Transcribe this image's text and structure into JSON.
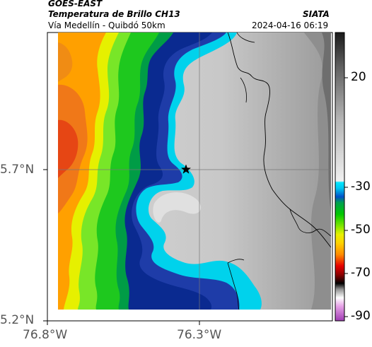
{
  "header": {
    "satellite": "GOES-EAST",
    "product": "Temperatura de Brillo CH13",
    "region": "Vía Medellín - Quibdó 50km",
    "org": "SIATA",
    "timestamp": "2024-04-16 06:19"
  },
  "axes": {
    "lat_labels": [
      "5.7°N",
      "5.2°N"
    ],
    "lon_labels": [
      "76.8°W",
      "76.3°W"
    ]
  },
  "colorbar": {
    "labels": [
      "20",
      "-30",
      "-50",
      "-70",
      "-90"
    ]
  },
  "colors": {
    "warm_gray": "#b5b5b5",
    "cold_cyan": "#00d7f0",
    "blue": "#1e3caa",
    "green": "#1ec81e",
    "yellow": "#e6f000",
    "orange": "#ff8c00",
    "red": "#e63200"
  }
}
